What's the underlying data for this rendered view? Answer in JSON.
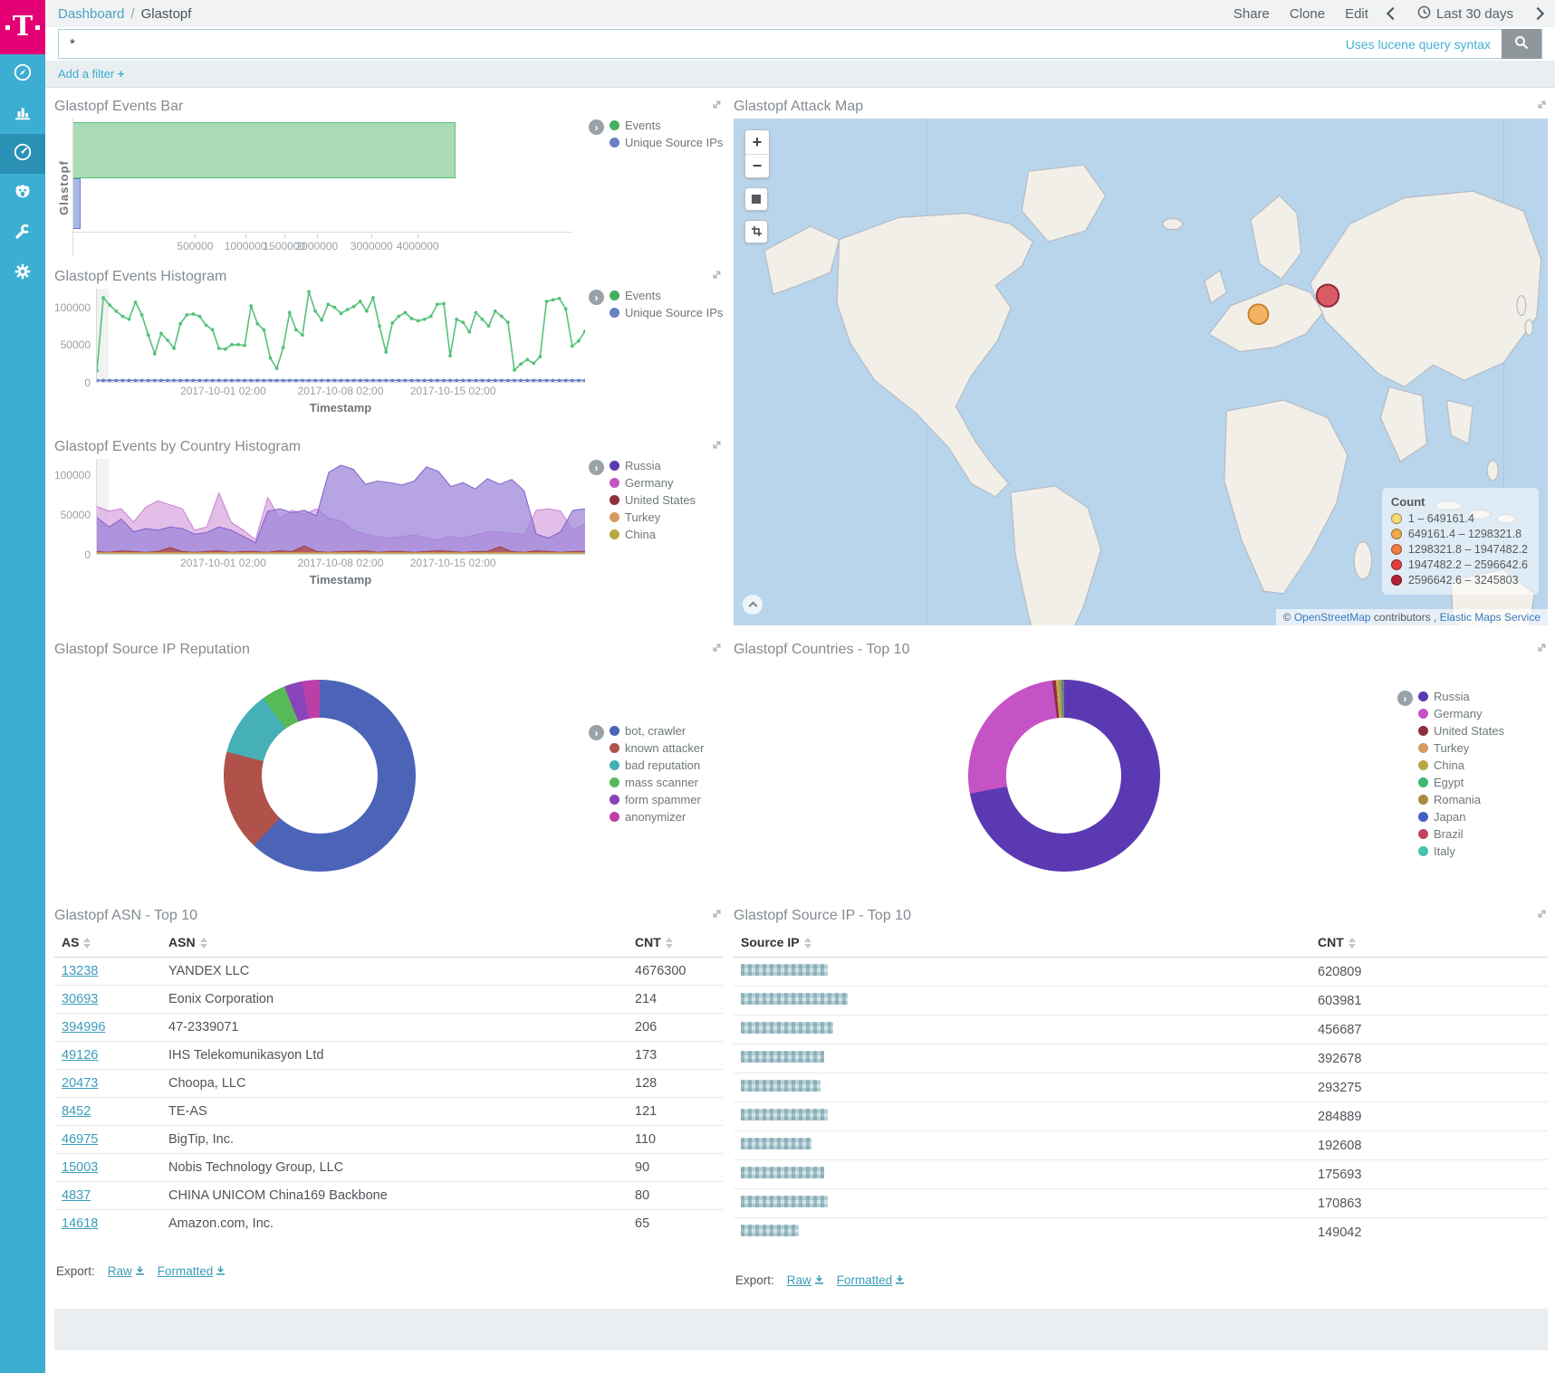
{
  "brand": {
    "logo_letter": "T",
    "color": "#e20074"
  },
  "sidebar": {
    "items": [
      {
        "id": "discover",
        "icon": "compass-icon",
        "active": false
      },
      {
        "id": "visualize",
        "icon": "bar-chart-icon",
        "active": false
      },
      {
        "id": "dashboard",
        "icon": "dashboard-icon",
        "active": true
      },
      {
        "id": "monitoring",
        "icon": "monitoring-icon",
        "active": false
      },
      {
        "id": "dev-tools",
        "icon": "wrench-icon",
        "active": false
      },
      {
        "id": "management",
        "icon": "gear-icon",
        "active": false
      }
    ]
  },
  "header": {
    "breadcrumb_root": "Dashboard",
    "breadcrumb_sep": "/",
    "breadcrumb_current": "Glastopf",
    "share": "Share",
    "clone": "Clone",
    "edit": "Edit",
    "time_range": "Last 30 days"
  },
  "query": {
    "value": "*",
    "syntax_hint": "Uses lucene query syntax"
  },
  "filter_bar": {
    "add_filter": "Add a filter",
    "plus": "+"
  },
  "panels": {
    "events_bar": {
      "title": "Glastopf Events Bar"
    },
    "events_histogram": {
      "title": "Glastopf Events Histogram"
    },
    "country_histogram": {
      "title": "Glastopf Events by Country Histogram"
    },
    "reputation": {
      "title": "Glastopf Source IP Reputation"
    },
    "attack_map": {
      "title": "Glastopf Attack Map"
    },
    "countries": {
      "title": "Glastopf Countries - Top 10"
    },
    "asn_table": {
      "title": "Glastopf ASN - Top 10"
    },
    "ip_table": {
      "title": "Glastopf Source IP - Top 10"
    }
  },
  "map_control_labels": {
    "zoom_in": "+",
    "zoom_out": "−"
  },
  "chart_data": [
    {
      "id": "events_bar",
      "type": "bar",
      "orientation": "horizontal",
      "scale": "sqrt",
      "category": "Glastopf",
      "x_max": 8400000,
      "x_ticks": [
        500000,
        1000000,
        1500000,
        2000000,
        3000000,
        4000000
      ],
      "series": [
        {
          "name": "Events",
          "value": 4676300,
          "stroke": "#57c17b",
          "fill": "#aadbb5"
        },
        {
          "name": "Unique Source IPs",
          "value": 1500,
          "stroke": "#6780c6",
          "fill": "#aab8e8"
        }
      ],
      "legend": [
        {
          "label": "Events",
          "color": "#41b05f"
        },
        {
          "label": "Unique Source IPs",
          "color": "#6780c6"
        }
      ]
    },
    {
      "id": "events_histogram",
      "type": "line",
      "xlabel": "Timestamp",
      "ylim": [
        0,
        125000
      ],
      "y_ticks": [
        0,
        50000,
        100000
      ],
      "x_tick_labels": [
        {
          "label": "2017-10-01 02:00",
          "pos": 0.26
        },
        {
          "label": "2017-10-08 02:00",
          "pos": 0.5
        },
        {
          "label": "2017-10-15 02:00",
          "pos": 0.73
        }
      ],
      "series": [
        {
          "name": "Events",
          "color": "#57c17b",
          "values": [
            15000,
            113000,
            103000,
            95000,
            88000,
            84000,
            107000,
            90000,
            63000,
            38000,
            65000,
            56000,
            45000,
            78000,
            90000,
            91000,
            88000,
            76000,
            70000,
            45000,
            44000,
            50000,
            50000,
            49000,
            102000,
            78000,
            70000,
            32000,
            18000,
            46000,
            93000,
            70000,
            63000,
            121000,
            95000,
            83000,
            104000,
            100000,
            92000,
            97000,
            101000,
            108000,
            95000,
            113000,
            75000,
            40000,
            79000,
            88000,
            93000,
            85000,
            82000,
            84000,
            88000,
            104000,
            105000,
            35000,
            84000,
            80000,
            67000,
            93000,
            84000,
            75000,
            95000,
            88000,
            80000,
            16000,
            24000,
            30000,
            25000,
            34000,
            108000,
            110000,
            112000,
            98000,
            48000,
            55000,
            68000
          ]
        },
        {
          "name": "Unique Source IPs",
          "color": "#6780c6",
          "values_constant": 2000
        }
      ],
      "legend": [
        {
          "label": "Events",
          "color": "#41b05f"
        },
        {
          "label": "Unique Source IPs",
          "color": "#6780c6"
        }
      ]
    },
    {
      "id": "country_histogram",
      "type": "area",
      "xlabel": "Timestamp",
      "ylim": [
        0,
        120000
      ],
      "y_ticks": [
        0,
        50000,
        100000
      ],
      "x_tick_labels": [
        {
          "label": "2017-10-01 02:00",
          "pos": 0.26
        },
        {
          "label": "2017-10-08 02:00",
          "pos": 0.5
        },
        {
          "label": "2017-10-15 02:00",
          "pos": 0.73
        }
      ],
      "series": [
        {
          "name": "Germany",
          "stroke": "#c87fd0",
          "fill": "#dcaee2",
          "opacity": 0.8,
          "values": [
            60000,
            54000,
            57000,
            40000,
            59000,
            67000,
            62000,
            57000,
            30000,
            34000,
            77000,
            40000,
            30000,
            18000,
            71000,
            45000,
            55000,
            50000,
            57000,
            45000,
            42000,
            30000,
            25000,
            22000,
            20000,
            22000,
            24000,
            20000,
            18000,
            22000,
            20000,
            24000,
            28000,
            28000,
            26000,
            24000,
            55000,
            57000,
            54000,
            30000,
            38000
          ]
        },
        {
          "name": "Russia",
          "stroke": "#7a5ec9",
          "fill": "#9b82d8",
          "opacity": 0.72,
          "values": [
            46000,
            34000,
            44000,
            28000,
            32000,
            30000,
            34000,
            32000,
            25000,
            27000,
            34000,
            30000,
            22000,
            14000,
            54000,
            57000,
            52000,
            55000,
            48000,
            103000,
            112000,
            107000,
            88000,
            92000,
            90000,
            87000,
            92000,
            110000,
            104000,
            85000,
            90000,
            82000,
            95000,
            88000,
            94000,
            80000,
            25000,
            20000,
            28000,
            55000,
            57000
          ]
        },
        {
          "name": "United States",
          "stroke": "#9e3b3b",
          "fill": "#b05252",
          "opacity": 0.85,
          "values": [
            3000,
            2000,
            4000,
            3000,
            2000,
            3000,
            8000,
            3000,
            2000,
            3000,
            4000,
            2000,
            3000,
            3000,
            2000,
            4000,
            3000,
            10000,
            3000,
            2000,
            3000,
            3000,
            4000,
            2000,
            3000,
            3000,
            2000,
            3000,
            4000,
            3000,
            2000,
            3000,
            3000,
            9000,
            3000,
            2000,
            4000,
            3000,
            2000,
            3000,
            3000
          ]
        },
        {
          "name": "Turkey",
          "stroke": "#d49a60",
          "fill": "#e0b183",
          "opacity": 0.8,
          "values_constant": 1500
        },
        {
          "name": "China",
          "stroke": "#b8a845",
          "fill": "#cabf6e",
          "opacity": 0.8,
          "values_constant": 1000
        }
      ],
      "legend": [
        {
          "label": "Russia",
          "color": "#5b39b2"
        },
        {
          "label": "Germany",
          "color": "#c553c5"
        },
        {
          "label": "United States",
          "color": "#8e3040"
        },
        {
          "label": "Turkey",
          "color": "#d49a60"
        },
        {
          "label": "China",
          "color": "#b8a845"
        }
      ]
    },
    {
      "id": "reputation_donut",
      "type": "pie",
      "donut": true,
      "labels": [
        "bot, crawler",
        "known attacker",
        "bad reputation",
        "mass scanner",
        "form spammer",
        "anonymizer"
      ],
      "values_pct": [
        62,
        17,
        11,
        4,
        3,
        3
      ],
      "colors": [
        "#4b64b8",
        "#b0524a",
        "#45b0b5",
        "#58b957",
        "#8a43ba",
        "#bc3fa8"
      ]
    },
    {
      "id": "countries_donut",
      "type": "pie",
      "donut": true,
      "labels": [
        "Russia",
        "Germany",
        "United States",
        "Turkey",
        "China",
        "Egypt",
        "Romania",
        "Japan",
        "Brazil",
        "Italy"
      ],
      "values_pct": [
        72,
        26,
        0.6,
        0.4,
        0.3,
        0.2,
        0.2,
        0.1,
        0.1,
        0.1
      ],
      "colors": [
        "#5b39b2",
        "#c553c5",
        "#8e3040",
        "#d49a60",
        "#b8a845",
        "#3fb873",
        "#aa8c3f",
        "#4160c4",
        "#c24358",
        "#47c2ae"
      ]
    },
    {
      "id": "attack_map",
      "type": "map",
      "legend_title": "Count",
      "legend": [
        {
          "range": "1 – 649161.4",
          "color": "#f7d975"
        },
        {
          "range": "649161.4 – 1298321.8",
          "color": "#f3a84e"
        },
        {
          "range": "1298321.8 – 1947482.2",
          "color": "#ee7d3f"
        },
        {
          "range": "1947482.2 – 2596642.6",
          "color": "#e23e3e"
        },
        {
          "range": "2596642.6 – 3245803",
          "color": "#b51f37"
        }
      ],
      "points": [
        {
          "name": "central-europe-point",
          "x": 477,
          "y": 178,
          "r": 9,
          "fill": "#f3a84e",
          "stroke": "#c77f2e"
        },
        {
          "name": "russia-point",
          "x": 540,
          "y": 161,
          "r": 10,
          "fill": "#d6404f",
          "stroke": "#8e2338"
        }
      ],
      "attribution": {
        "prefix": "©",
        "osm_label": "OpenStreetMap",
        "contributors_label": "contributors",
        "separator": ",",
        "ems_label": "Elastic Maps Service"
      }
    },
    {
      "id": "asn_table",
      "type": "table",
      "columns": [
        "AS",
        "ASN",
        "CNT"
      ],
      "rows": [
        [
          "13238",
          "YANDEX LLC",
          "4676300"
        ],
        [
          "30693",
          "Eonix Corporation",
          "214"
        ],
        [
          "394996",
          "47-2339071",
          "206"
        ],
        [
          "49126",
          "IHS Telekomunikasyon Ltd",
          "173"
        ],
        [
          "20473",
          "Choopa, LLC",
          "128"
        ],
        [
          "8452",
          "TE-AS",
          "121"
        ],
        [
          "46975",
          "BigTip, Inc.",
          "110"
        ],
        [
          "15003",
          "Nobis Technology Group, LLC",
          "90"
        ],
        [
          "4837",
          "CHINA UNICOM China169 Backbone",
          "80"
        ],
        [
          "14618",
          "Amazon.com, Inc.",
          "65"
        ]
      ],
      "export": {
        "label": "Export:",
        "raw": "Raw",
        "formatted": "Formatted"
      }
    },
    {
      "id": "ip_table",
      "type": "table",
      "columns": [
        "Source IP",
        "CNT"
      ],
      "rows_redacted": true,
      "cnt_values": [
        "620809",
        "603981",
        "456687",
        "392678",
        "293275",
        "284889",
        "192608",
        "175693",
        "170863",
        "149042"
      ],
      "redacted_widths": [
        96,
        118,
        102,
        92,
        88,
        96,
        78,
        92,
        96,
        64
      ],
      "export": {
        "label": "Export:",
        "raw": "Raw",
        "formatted": "Formatted"
      }
    }
  ]
}
